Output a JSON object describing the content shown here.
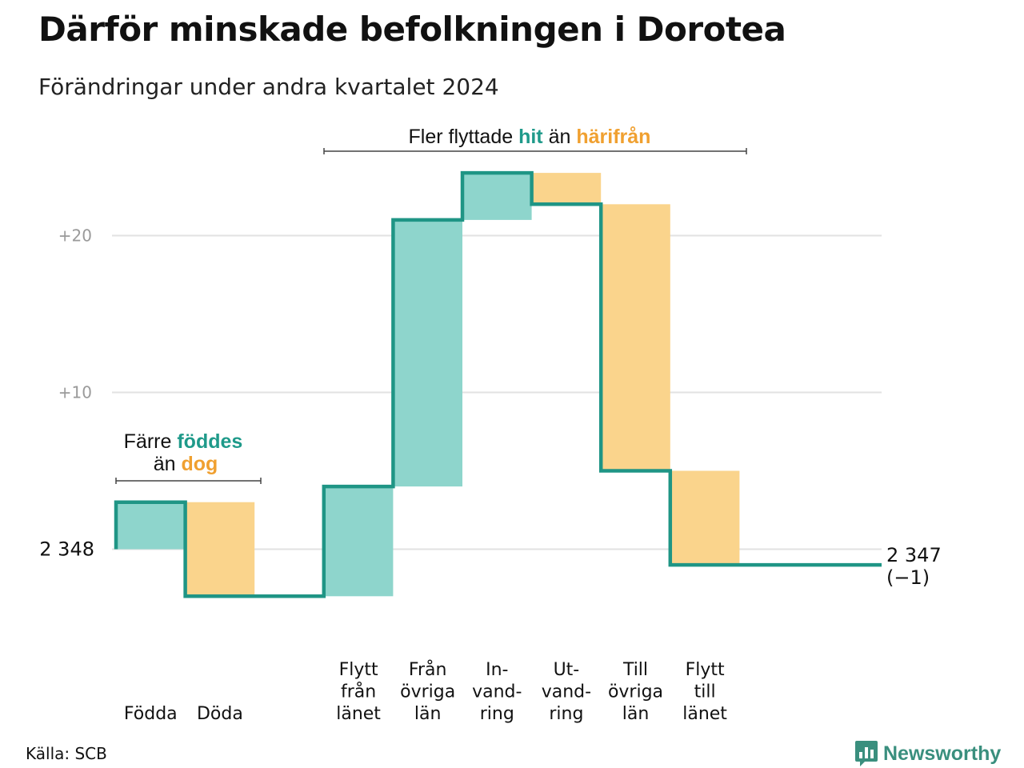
{
  "title": "Därför minskade befolkningen i Dorotea",
  "subtitle": "Förändringar under andra kvartalet 2024",
  "source": "Källa: SCB",
  "brand": {
    "name": "Newsworthy",
    "icon": "chart-bubble-icon"
  },
  "colors": {
    "increase": "#8ed5cc",
    "decrease": "#fad48c",
    "line": "#1f9585",
    "grid": "#e2e2e2"
  },
  "annotations": {
    "births": {
      "line1_pre": "Färre",
      "line1_word": "föddes",
      "line2_pre": "än",
      "line2_word": "dog"
    },
    "moves": {
      "pre": "Fler flyttade",
      "word1": "hit",
      "mid": "än",
      "word2": "härifrån"
    }
  },
  "chart_data": {
    "type": "waterfall",
    "title": "Därför minskade befolkningen i Dorotea",
    "subtitle": "Förändringar under andra kvartalet 2024",
    "start": {
      "value": 2348,
      "label": "2 348"
    },
    "end": {
      "value": 2347,
      "label": "2 347",
      "change_label": "(−1)"
    },
    "yticks": [
      {
        "value": 10,
        "label": "+10"
      },
      {
        "value": 20,
        "label": "+20"
      }
    ],
    "ylim": [
      -5,
      24
    ],
    "grid": true,
    "steps": [
      {
        "label": [
          "Födda"
        ],
        "change": 3
      },
      {
        "label": [
          "Döda"
        ],
        "change": -6
      },
      {
        "label": [],
        "change": 0
      },
      {
        "label": [
          "Flytt",
          "från",
          "länet"
        ],
        "change": 7
      },
      {
        "label": [
          "Från",
          "övriga",
          "län"
        ],
        "change": 17
      },
      {
        "label": [
          "In-",
          "vand-",
          "ring"
        ],
        "change": 3
      },
      {
        "label": [
          "Ut-",
          "vand-",
          "ring"
        ],
        "change": -2
      },
      {
        "label": [
          "Till",
          "övriga",
          "län"
        ],
        "change": -17
      },
      {
        "label": [
          "Flytt",
          "till",
          "länet"
        ],
        "change": -6
      }
    ]
  }
}
